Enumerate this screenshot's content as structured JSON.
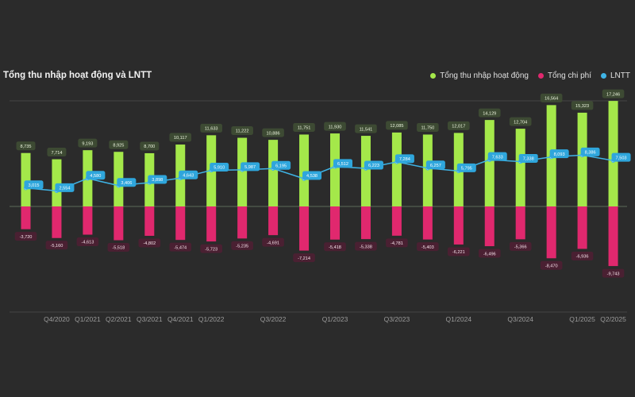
{
  "chart_data": {
    "type": "bar",
    "title": "Tổng thu nhập hoạt động và LNTT",
    "xlabel": "",
    "ylabel": "",
    "legend_position": "top-right",
    "grid": true,
    "ylim": [
      -11500,
      20000
    ],
    "tick_labels": [
      {
        "index": 1,
        "label": "Q4/2020"
      },
      {
        "index": 2,
        "label": "Q1/2021"
      },
      {
        "index": 3,
        "label": "Q2/2021"
      },
      {
        "index": 4,
        "label": "Q3/2021"
      },
      {
        "index": 5,
        "label": "Q4/2021"
      },
      {
        "index": 6,
        "label": "Q1/2022"
      },
      {
        "index": 8,
        "label": "Q3/2022"
      },
      {
        "index": 10,
        "label": "Q1/2023"
      },
      {
        "index": 12,
        "label": "Q3/2023"
      },
      {
        "index": 14,
        "label": "Q1/2024"
      },
      {
        "index": 16,
        "label": "Q3/2024"
      },
      {
        "index": 18,
        "label": "Q1/2025"
      },
      {
        "index": 19,
        "label": "Q2/2025"
      }
    ],
    "series": [
      {
        "name": "Tổng thu nhập hoạt động",
        "kind": "bar",
        "color": "#a4e84a",
        "values": [
          8735,
          7714,
          9193,
          8925,
          8700,
          10117,
          11633,
          11222,
          10886,
          11751,
          11930,
          11541,
          12085,
          11750,
          12017,
          14129,
          12704,
          16564,
          15323,
          17246
        ],
        "labels": [
          "8,735",
          "7,714",
          "9,193",
          "8,925",
          "8,700",
          "10,117",
          "11,633",
          "11,222",
          "10,886",
          "11,751",
          "11,930",
          "11,541",
          "12,085",
          "11,750",
          "12,017",
          "14,129",
          "12,704",
          "16,564",
          "15,323",
          "17,246"
        ]
      },
      {
        "name": "Tổng chi phí",
        "kind": "bar",
        "color": "#e0286e",
        "values": [
          -3720,
          -5160,
          -4613,
          -5518,
          -4802,
          -5474,
          -5723,
          -5235,
          -4691,
          -7214,
          -5418,
          -5338,
          -4781,
          -5403,
          -6221,
          -6496,
          -5366,
          -8470,
          -6936,
          -9743
        ],
        "labels": [
          "-3,720",
          "-5,160",
          "-4,613",
          "-5,518",
          "-4,802",
          "-5,474",
          "-5,723",
          "-5,235",
          "-4,691",
          "-7,214",
          "-5,418",
          "-5,338",
          "-4,781",
          "-5,403",
          "-6,221",
          "-6,496",
          "-5,366",
          "-8,470",
          "-6,936",
          "-9,743"
        ]
      },
      {
        "name": "LNTT",
        "kind": "line",
        "color": "#3fb4e6",
        "values": [
          3015,
          2554,
          4580,
          3406,
          3898,
          4643,
          5910,
          5987,
          6195,
          4538,
          6512,
          6223,
          7284,
          6257,
          5795,
          7633,
          7338,
          8093,
          8386,
          7503
        ],
        "labels": [
          "3,015",
          "2,554",
          "4,580",
          "3,406",
          "3,898",
          "4,643",
          "5,910",
          "5,987",
          "6,195",
          "4,538",
          "6,512",
          "6,223",
          "7,284",
          "6,257",
          "5,795",
          "7,633",
          "7,338",
          "8,093",
          "8,386",
          "7,503"
        ]
      }
    ]
  }
}
